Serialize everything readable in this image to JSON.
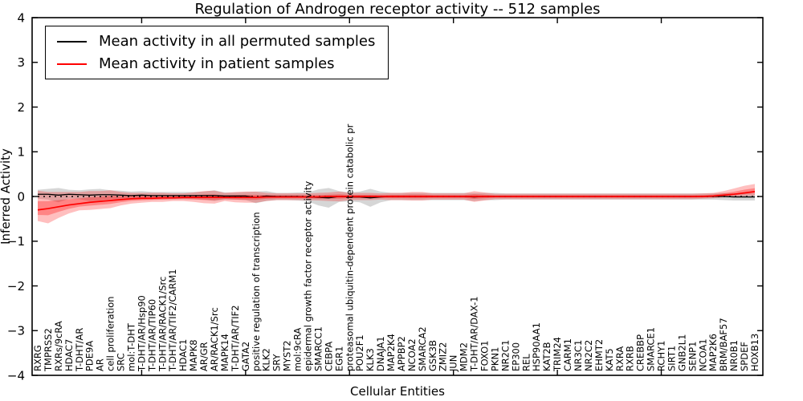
{
  "figure": {
    "title": "Regulation of Androgen receptor activity -- 512 samples",
    "xlabel": "Cellular Entities",
    "ylabel": "Inferred Activity"
  },
  "legend": {
    "entries": [
      {
        "label": "Mean activity in all permuted samples",
        "color": "#000000"
      },
      {
        "label": "Mean activity in patient samples",
        "color": "#ff0000"
      }
    ]
  },
  "colors": {
    "permuted_line": "#000000",
    "permuted_band": "#999999",
    "patient_line": "#ff0000",
    "patient_band": "#ff0000",
    "axis": "#000000",
    "background": "#ffffff"
  },
  "chart_data": {
    "type": "line",
    "title": "Regulation of Androgen receptor activity -- 512 samples",
    "xlabel": "Cellular Entities",
    "ylabel": "Inferred Activity",
    "ylim": [
      -4,
      4
    ],
    "yticks": [
      4,
      3,
      2,
      1,
      0,
      -1,
      -2,
      -3,
      -4
    ],
    "ytick_labels": [
      "4",
      "3",
      "2",
      "1",
      "0",
      "−1",
      "−2",
      "−3",
      "−4"
    ],
    "xtick_indices": [
      10,
      20,
      30,
      40,
      50,
      60
    ],
    "grid": false,
    "legend_position": "upper left",
    "zero_reference_line": {
      "y": 0,
      "style": "dotted",
      "color": "#000000"
    },
    "categories": [
      "RXRG",
      "TMPRSS2",
      "RXRs/9cRA",
      "HDAC7",
      "T-DHT/AR",
      "PDE9A",
      "AR",
      "cell proliferation",
      "SRC",
      "mol:T-DHT",
      "T-DHT/AR/Hsp90",
      "T-DHT/AR/TIP60",
      "T-DHT/AR/RACK1/Src",
      "T-DHT/AR/TIF2/CARM1",
      "HDAC1",
      "MAPK8",
      "AR/GR",
      "AR/RACK1/Src",
      "MAPK14",
      "T-DHT/AR/TIF2",
      "GATA2",
      "positive regulation of transcription",
      "KLK2",
      "SRY",
      "MYST2",
      "mol:9cRA",
      "epidermal growth factor receptor activity",
      "SMARCC1",
      "CEBPA",
      "EGR1",
      "proteasomal ubiquitin-dependent protein catabolic pr",
      "POU2F1",
      "KLK3",
      "DNAJA1",
      "MAP2K4",
      "APPBP2",
      "NCOA2",
      "SMARCA2",
      "GSK3B",
      "ZMIZ2",
      "JUN",
      "MDM2",
      "T-DHT/AR/DAX-1",
      "FOXO1",
      "PKN1",
      "NR2C1",
      "EP300",
      "REL",
      "HSP90AA1",
      "KAT2B",
      "TRIM24",
      "CARM1",
      "NR3C1",
      "NR2C2",
      "EHMT2",
      "KAT5",
      "RXRA",
      "RXRB",
      "CREBBP",
      "SMARCE1",
      "RCHY1",
      "SIRT1",
      "GNB2L1",
      "SENP1",
      "NCOA1",
      "MAP2K6",
      "BRM/BAF57",
      "NR0B1",
      "SPDEF",
      "HOXB13"
    ],
    "series": [
      {
        "name": "Mean activity in all permuted samples",
        "color": "#000000",
        "values": [
          0.05,
          0.05,
          0.03,
          0.05,
          0.04,
          0.03,
          0.04,
          0.04,
          0.03,
          0.02,
          0.03,
          0.02,
          0.02,
          0.02,
          0.02,
          0.02,
          0.02,
          0.02,
          0.01,
          0.01,
          0.01,
          -0.02,
          0.01,
          0.0,
          0.0,
          0.0,
          -0.01,
          -0.02,
          -0.03,
          0.0,
          -0.01,
          -0.01,
          -0.03,
          -0.01,
          0.0,
          0.0,
          0.0,
          0.0,
          0.0,
          0.0,
          0.0,
          0.0,
          -0.01,
          0.0,
          0.0,
          0.0,
          0.0,
          0.0,
          0.0,
          0.0,
          0.0,
          0.0,
          0.0,
          0.0,
          0.0,
          0.0,
          0.0,
          0.0,
          0.0,
          0.0,
          0.0,
          0.0,
          0.0,
          0.0,
          0.0,
          0.0,
          0.0,
          -0.01,
          -0.01,
          -0.01
        ],
        "band_halfwidth": [
          0.1,
          0.12,
          0.16,
          0.1,
          0.1,
          0.13,
          0.13,
          0.1,
          0.1,
          0.09,
          0.09,
          0.08,
          0.08,
          0.08,
          0.08,
          0.08,
          0.09,
          0.12,
          0.08,
          0.08,
          0.09,
          0.13,
          0.11,
          0.08,
          0.08,
          0.09,
          0.1,
          0.18,
          0.22,
          0.12,
          0.1,
          0.12,
          0.2,
          0.12,
          0.08,
          0.08,
          0.08,
          0.08,
          0.08,
          0.08,
          0.08,
          0.08,
          0.09,
          0.08,
          0.08,
          0.07,
          0.07,
          0.07,
          0.07,
          0.07,
          0.07,
          0.07,
          0.07,
          0.07,
          0.07,
          0.07,
          0.07,
          0.07,
          0.07,
          0.07,
          0.07,
          0.07,
          0.07,
          0.07,
          0.07,
          0.07,
          0.08,
          0.08,
          0.08,
          0.08
        ]
      },
      {
        "name": "Mean activity in patient samples",
        "color": "#ff0000",
        "values": [
          -0.3,
          -0.27,
          -0.23,
          -0.19,
          -0.16,
          -0.13,
          -0.11,
          -0.09,
          -0.07,
          -0.05,
          -0.04,
          -0.04,
          -0.03,
          -0.03,
          -0.02,
          -0.02,
          -0.02,
          -0.02,
          -0.02,
          -0.02,
          -0.02,
          -0.02,
          -0.01,
          -0.01,
          -0.01,
          -0.01,
          -0.01,
          -0.01,
          0.0,
          0.0,
          0.0,
          0.0,
          0.0,
          0.0,
          0.0,
          0.0,
          0.0,
          0.0,
          0.0,
          0.0,
          0.0,
          0.0,
          0.0,
          0.0,
          0.0,
          0.0,
          0.0,
          0.0,
          0.0,
          0.0,
          0.0,
          0.0,
          0.0,
          0.0,
          0.0,
          0.0,
          0.0,
          0.0,
          0.0,
          0.0,
          0.0,
          0.0,
          0.0,
          0.0,
          0.0,
          0.01,
          0.03,
          0.05,
          0.08,
          0.11
        ],
        "band_upper": [
          0.13,
          0.1,
          0.1,
          0.1,
          0.1,
          0.12,
          0.12,
          0.14,
          0.1,
          0.08,
          0.08,
          0.08,
          0.08,
          0.07,
          0.07,
          0.09,
          0.12,
          0.13,
          0.08,
          0.1,
          0.11,
          0.11,
          0.08,
          0.07,
          0.07,
          0.07,
          0.07,
          0.08,
          0.09,
          0.11,
          0.08,
          0.08,
          0.08,
          0.07,
          0.08,
          0.08,
          0.1,
          0.1,
          0.07,
          0.07,
          0.07,
          0.07,
          0.12,
          0.09,
          0.06,
          0.06,
          0.06,
          0.06,
          0.06,
          0.06,
          0.06,
          0.06,
          0.06,
          0.06,
          0.06,
          0.06,
          0.06,
          0.06,
          0.06,
          0.06,
          0.06,
          0.06,
          0.06,
          0.06,
          0.07,
          0.08,
          0.12,
          0.18,
          0.24,
          0.28
        ],
        "band_lower": [
          -0.55,
          -0.6,
          -0.48,
          -0.38,
          -0.31,
          -0.3,
          -0.28,
          -0.26,
          -0.2,
          -0.16,
          -0.14,
          -0.12,
          -0.12,
          -0.1,
          -0.1,
          -0.12,
          -0.15,
          -0.16,
          -0.1,
          -0.13,
          -0.14,
          -0.14,
          -0.1,
          -0.08,
          -0.08,
          -0.08,
          -0.08,
          -0.09,
          -0.1,
          -0.11,
          -0.08,
          -0.08,
          -0.08,
          -0.07,
          -0.08,
          -0.08,
          -0.09,
          -0.09,
          -0.07,
          -0.07,
          -0.07,
          -0.07,
          -0.12,
          -0.09,
          -0.06,
          -0.06,
          -0.06,
          -0.06,
          -0.06,
          -0.06,
          -0.06,
          -0.06,
          -0.06,
          -0.06,
          -0.06,
          -0.06,
          -0.06,
          -0.06,
          -0.06,
          -0.06,
          -0.06,
          -0.06,
          -0.06,
          -0.06,
          -0.05,
          -0.04,
          -0.02,
          0.0,
          0.01,
          0.02
        ]
      }
    ]
  }
}
